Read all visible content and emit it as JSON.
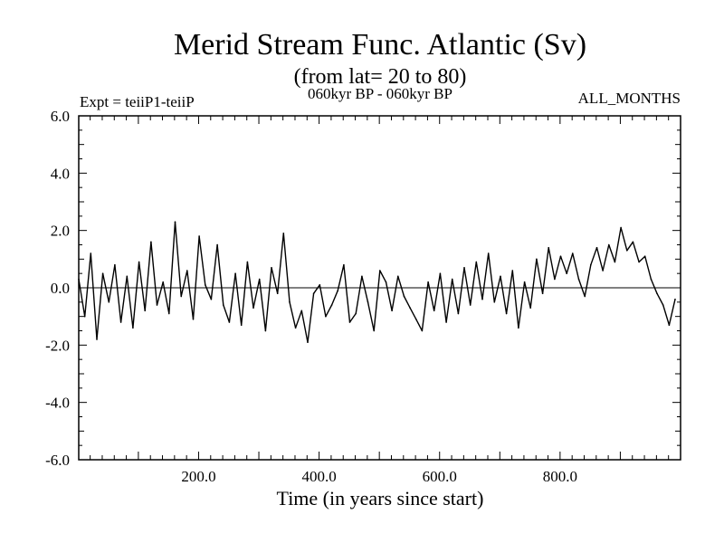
{
  "chart_data": {
    "type": "line",
    "title": "Merid Stream Func. Atlantic (Sv)",
    "subtitle": "(from lat= 20 to 80)",
    "left_label": "Expt = teiiP1-teiiP",
    "center_label": "060kyr BP - 060kyr BP",
    "right_label": "ALL_MONTHS",
    "xlabel": "Time (in years since start)",
    "ylabel": "",
    "xlim": [
      1,
      1000
    ],
    "ylim": [
      -6.0,
      6.0
    ],
    "x_ticks": [
      200,
      400,
      600,
      800
    ],
    "x_tick_labels": [
      "200.0",
      "400.0",
      "600.0",
      "800.0"
    ],
    "y_ticks": [
      -6,
      -4,
      -2,
      0,
      2,
      4,
      6
    ],
    "y_tick_labels": [
      "-6.0",
      "-4.0",
      "-2.0",
      "0.0",
      "2.0",
      "4.0",
      "6.0"
    ],
    "zero_line": true,
    "series": [
      {
        "color": "#000000",
        "x_start": 1,
        "x_step": 10,
        "values": [
          0.3,
          -1.0,
          1.2,
          -1.8,
          0.5,
          -0.5,
          0.8,
          -1.2,
          0.4,
          -1.4,
          0.9,
          -0.8,
          1.6,
          -0.6,
          0.2,
          -0.9,
          2.3,
          -0.3,
          0.6,
          -1.1,
          1.8,
          0.1,
          -0.4,
          1.5,
          -0.6,
          -1.2,
          0.5,
          -1.3,
          0.9,
          -0.7,
          0.3,
          -1.5,
          0.7,
          -0.2,
          1.9,
          -0.5,
          -1.4,
          -0.8,
          -1.9,
          -0.2,
          0.1,
          -1.0,
          -0.6,
          -0.1,
          0.8,
          -1.2,
          -0.9,
          0.4,
          -0.5,
          -1.5,
          0.6,
          0.2,
          -0.8,
          0.4,
          -0.3,
          -0.7,
          -1.1,
          -1.5,
          0.2,
          -0.8,
          0.5,
          -1.2,
          0.3,
          -0.9,
          0.7,
          -0.6,
          0.9,
          -0.4,
          1.2,
          -0.5,
          0.4,
          -0.9,
          0.6,
          -1.4,
          0.2,
          -0.7,
          1.0,
          -0.2,
          1.4,
          0.3,
          1.1,
          0.5,
          1.2,
          0.3,
          -0.3,
          0.8,
          1.4,
          0.6,
          1.5,
          0.9,
          2.1,
          1.3,
          1.6,
          0.9,
          1.1,
          0.3,
          -0.2,
          -0.6,
          -1.3,
          -0.4
        ]
      }
    ]
  }
}
